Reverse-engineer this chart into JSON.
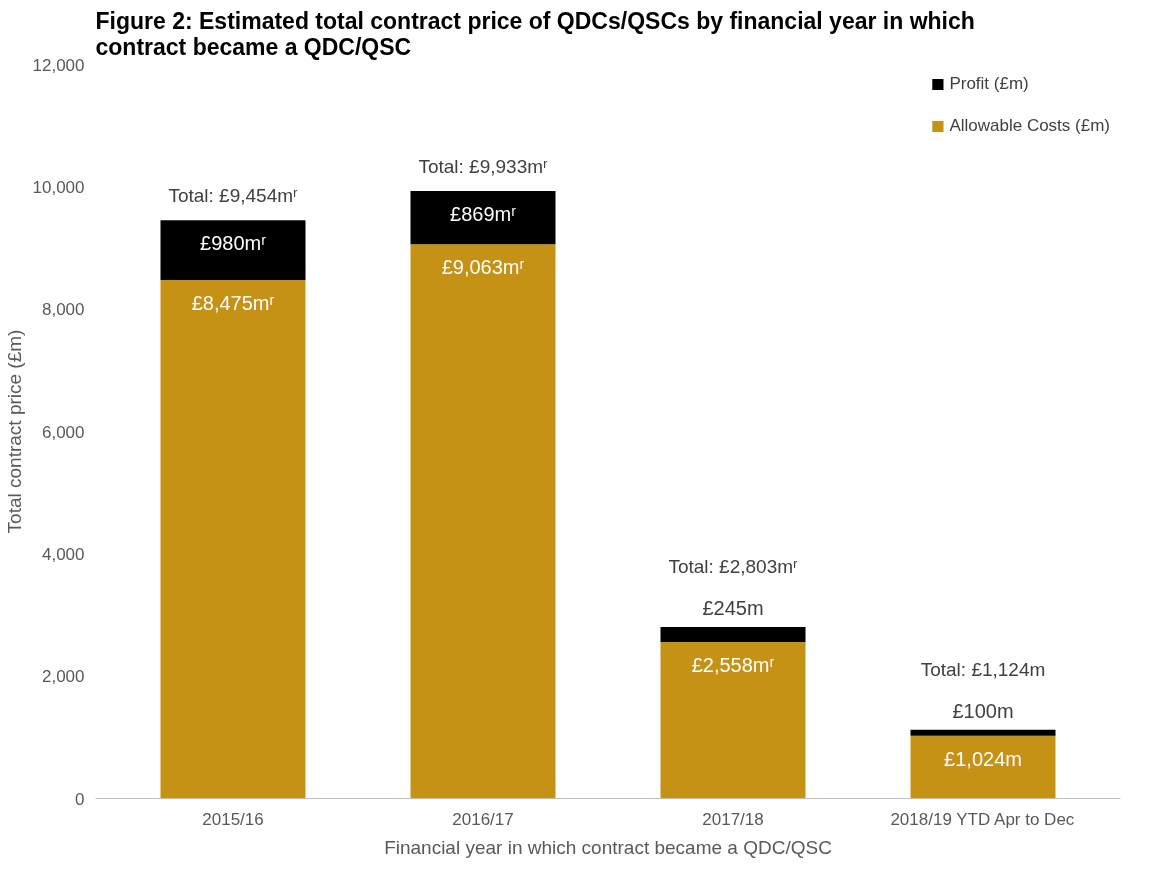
{
  "chart_data": {
    "type": "bar",
    "stacked": true,
    "title": "Figure 2:  Estimated total contract price of QDCs/QSCs by financial year in which contract became a QDC/QSC",
    "xlabel": "Financial year in which contract became a QDC/QSC",
    "ylabel": "Total contract price (£m)",
    "categories": [
      "2015/16",
      "2016/17",
      "2017/18",
      "2018/19 YTD Apr to Dec"
    ],
    "series": [
      {
        "name": "Allowable Costs (£m)",
        "color": "#c59216",
        "values": [
          8475,
          9063,
          2558,
          1024
        ],
        "value_labels": [
          "£8,475mʳ",
          "£9,063mʳ",
          "£2,558mʳ",
          "£1,024m"
        ]
      },
      {
        "name": "Profit (£m)",
        "color": "#000000",
        "values": [
          980,
          869,
          245,
          100
        ],
        "value_labels": [
          "£980mʳ",
          "£869mʳ",
          "£245m",
          "£100m"
        ]
      }
    ],
    "totals": [
      "Total: £9,454mʳ",
      "Total: £9,933mʳ",
      "Total: £2,803mʳ",
      "Total: £1,124m"
    ],
    "ylim": [
      0,
      12000
    ],
    "yticks": [
      0,
      {
        "value": 2000,
        "label": "2,000"
      },
      {
        "value": 4000,
        "label": "4,000"
      },
      {
        "value": 6000,
        "label": "6,000"
      },
      {
        "value": 8000,
        "label": "8,000"
      },
      {
        "value": 10000,
        "label": "10,000"
      },
      {
        "value": 12000,
        "label": "12,000"
      }
    ],
    "legend": "top right"
  }
}
